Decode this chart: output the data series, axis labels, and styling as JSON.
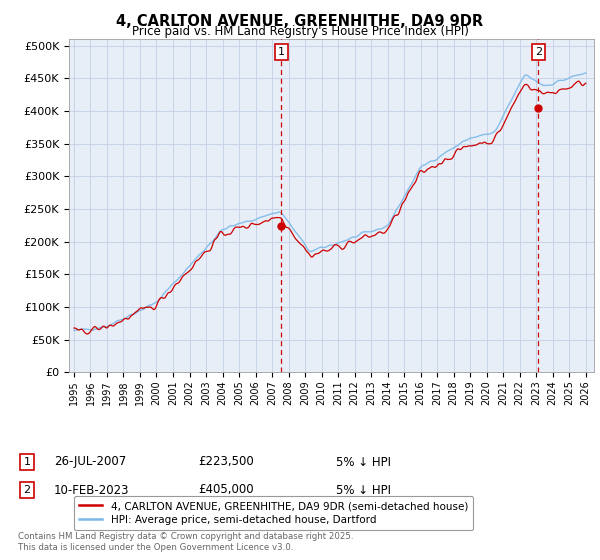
{
  "title": "4, CARLTON AVENUE, GREENHITHE, DA9 9DR",
  "subtitle": "Price paid vs. HM Land Registry's House Price Index (HPI)",
  "ylabel_ticks": [
    "£0",
    "£50K",
    "£100K",
    "£150K",
    "£200K",
    "£250K",
    "£300K",
    "£350K",
    "£400K",
    "£450K",
    "£500K"
  ],
  "ytick_values": [
    0,
    50000,
    100000,
    150000,
    200000,
    250000,
    300000,
    350000,
    400000,
    450000,
    500000
  ],
  "ylim": [
    0,
    510000
  ],
  "xlim_start": 1994.7,
  "xlim_end": 2026.5,
  "xticks": [
    1995,
    1996,
    1997,
    1998,
    1999,
    2000,
    2001,
    2002,
    2003,
    2004,
    2005,
    2006,
    2007,
    2008,
    2009,
    2010,
    2011,
    2012,
    2013,
    2014,
    2015,
    2016,
    2017,
    2018,
    2019,
    2020,
    2021,
    2022,
    2023,
    2024,
    2025,
    2026
  ],
  "vline1_x": 2007.56,
  "vline2_x": 2023.12,
  "sale1_y": 223500,
  "sale2_y": 405000,
  "sale1_date": "26-JUL-2007",
  "sale1_price": "£223,500",
  "sale1_hpi": "5% ↓ HPI",
  "sale2_date": "10-FEB-2023",
  "sale2_price": "£405,000",
  "sale2_hpi": "5% ↓ HPI",
  "legend_line1": "4, CARLTON AVENUE, GREENHITHE, DA9 9DR (semi-detached house)",
  "legend_line2": "HPI: Average price, semi-detached house, Dartford",
  "line_color_red": "#cc0000",
  "line_color_blue": "#7ab8e8",
  "vline_color": "#cc0000",
  "grid_color": "#c8d4e8",
  "bg_color": "#e8eef8",
  "footer": "Contains HM Land Registry data © Crown copyright and database right 2025.\nThis data is licensed under the Open Government Licence v3.0."
}
